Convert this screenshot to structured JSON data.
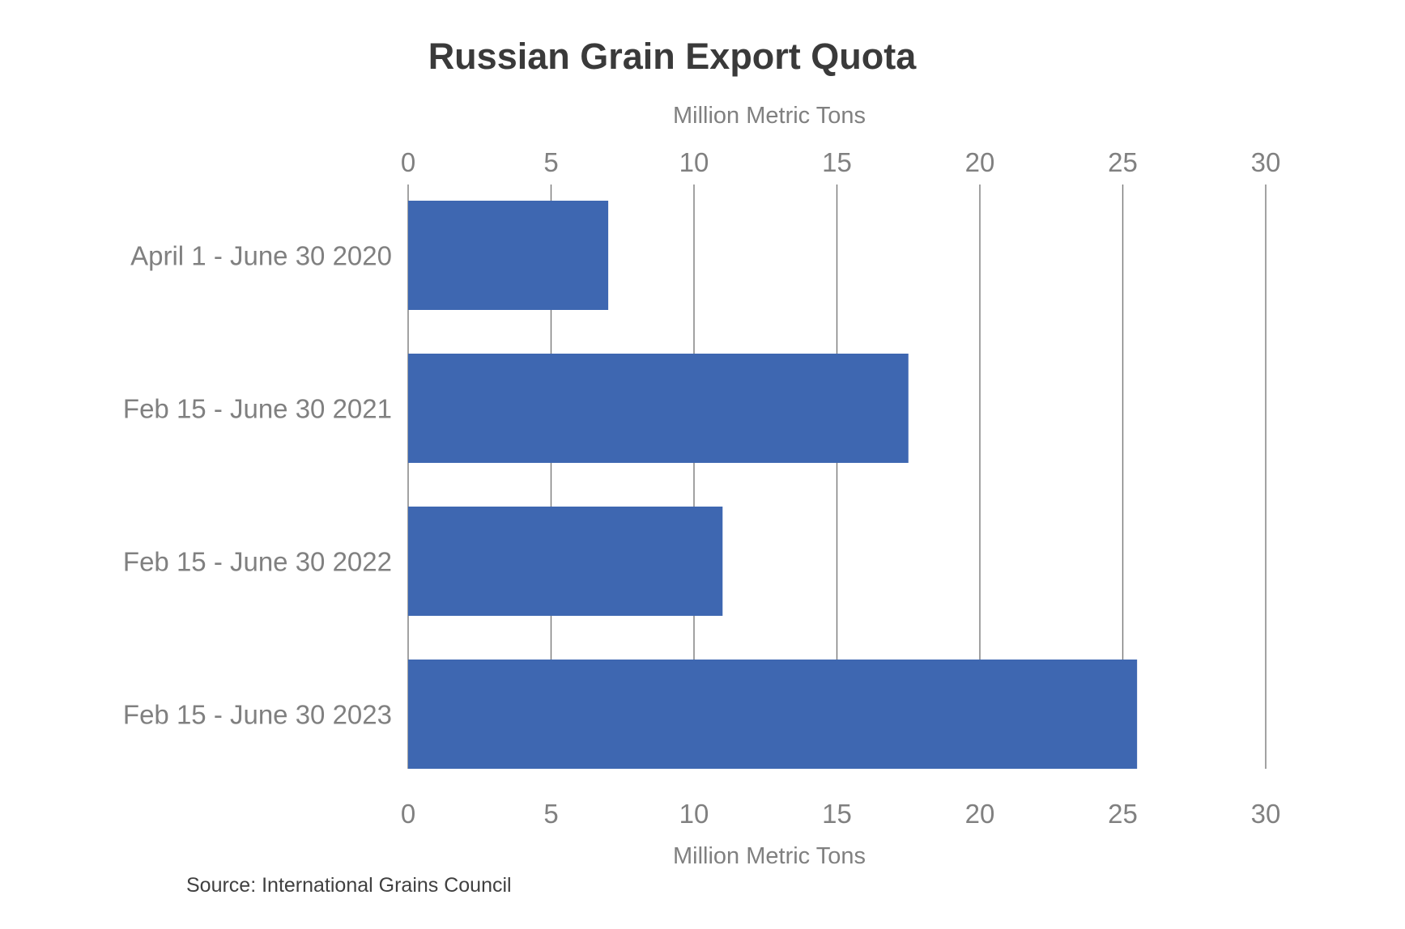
{
  "chart_data": {
    "type": "bar",
    "orientation": "horizontal",
    "title": "Russian Grain Export Quota",
    "xlabel": "Million Metric Tons",
    "ylabel": "",
    "categories": [
      "April 1 - June 30 2020",
      "Feb 15 - June 30 2021",
      "Feb 15 - June 30 2022",
      "Feb 15 - June 30 2023"
    ],
    "values": [
      7,
      17.5,
      11,
      25.5
    ],
    "xlim": [
      0,
      30
    ],
    "xticks": [
      "0",
      "5",
      "10",
      "15",
      "20",
      "25",
      "30"
    ],
    "axis_positions": [
      "top",
      "bottom"
    ],
    "grid": true,
    "legend": "none",
    "colors": {
      "bar": "#3e67b1",
      "grid": "#7a7a7a",
      "title": "#3a3a3a",
      "label": "#808080",
      "source": "#404040"
    },
    "source_note": "Source: International Grains Council"
  }
}
